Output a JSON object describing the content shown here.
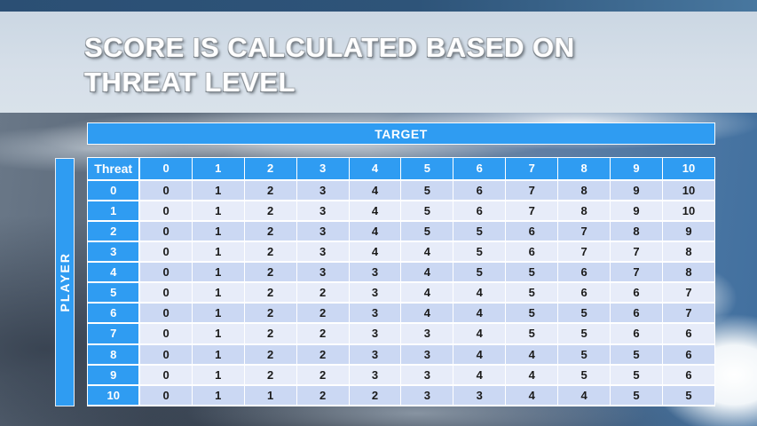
{
  "slide_title": {
    "line1": "SCORE IS CALCULATED BASED ON",
    "line2": "THREAT LEVEL"
  },
  "axis_labels": {
    "target": "TARGET",
    "player": "PLAYER"
  },
  "score_table": {
    "corner_header": "Threat",
    "column_headers": [
      "0",
      "1",
      "2",
      "3",
      "4",
      "5",
      "6",
      "7",
      "8",
      "9",
      "10"
    ],
    "rows": [
      {
        "threat": "0",
        "scores": [
          0,
          1,
          2,
          3,
          4,
          5,
          6,
          7,
          8,
          9,
          10
        ]
      },
      {
        "threat": "1",
        "scores": [
          0,
          1,
          2,
          3,
          4,
          5,
          6,
          7,
          8,
          9,
          10
        ]
      },
      {
        "threat": "2",
        "scores": [
          0,
          1,
          2,
          3,
          4,
          5,
          5,
          6,
          7,
          8,
          9
        ]
      },
      {
        "threat": "3",
        "scores": [
          0,
          1,
          2,
          3,
          4,
          4,
          5,
          6,
          7,
          7,
          8
        ]
      },
      {
        "threat": "4",
        "scores": [
          0,
          1,
          2,
          3,
          3,
          4,
          5,
          5,
          6,
          7,
          8
        ]
      },
      {
        "threat": "5",
        "scores": [
          0,
          1,
          2,
          2,
          3,
          4,
          4,
          5,
          6,
          6,
          7
        ]
      },
      {
        "threat": "6",
        "scores": [
          0,
          1,
          2,
          2,
          3,
          4,
          4,
          5,
          5,
          6,
          7
        ]
      },
      {
        "threat": "7",
        "scores": [
          0,
          1,
          2,
          2,
          3,
          3,
          4,
          5,
          5,
          6,
          6
        ]
      },
      {
        "threat": "8",
        "scores": [
          0,
          1,
          2,
          2,
          3,
          3,
          4,
          4,
          5,
          5,
          6
        ]
      },
      {
        "threat": "9",
        "scores": [
          0,
          1,
          2,
          2,
          3,
          3,
          4,
          4,
          5,
          5,
          6
        ]
      },
      {
        "threat": "10",
        "scores": [
          0,
          1,
          1,
          2,
          2,
          3,
          3,
          4,
          4,
          5,
          5
        ]
      }
    ]
  },
  "colors": {
    "accent_blue": "#2F9CF2",
    "row_stripe_dark": "#CBD8F3",
    "row_stripe_light": "#E7ECF9",
    "cell_text": "#1B1B1B",
    "header_text": "#FFFFFF",
    "top_strip_sky": "#2D5278",
    "title_band": "#D2DCE7"
  }
}
